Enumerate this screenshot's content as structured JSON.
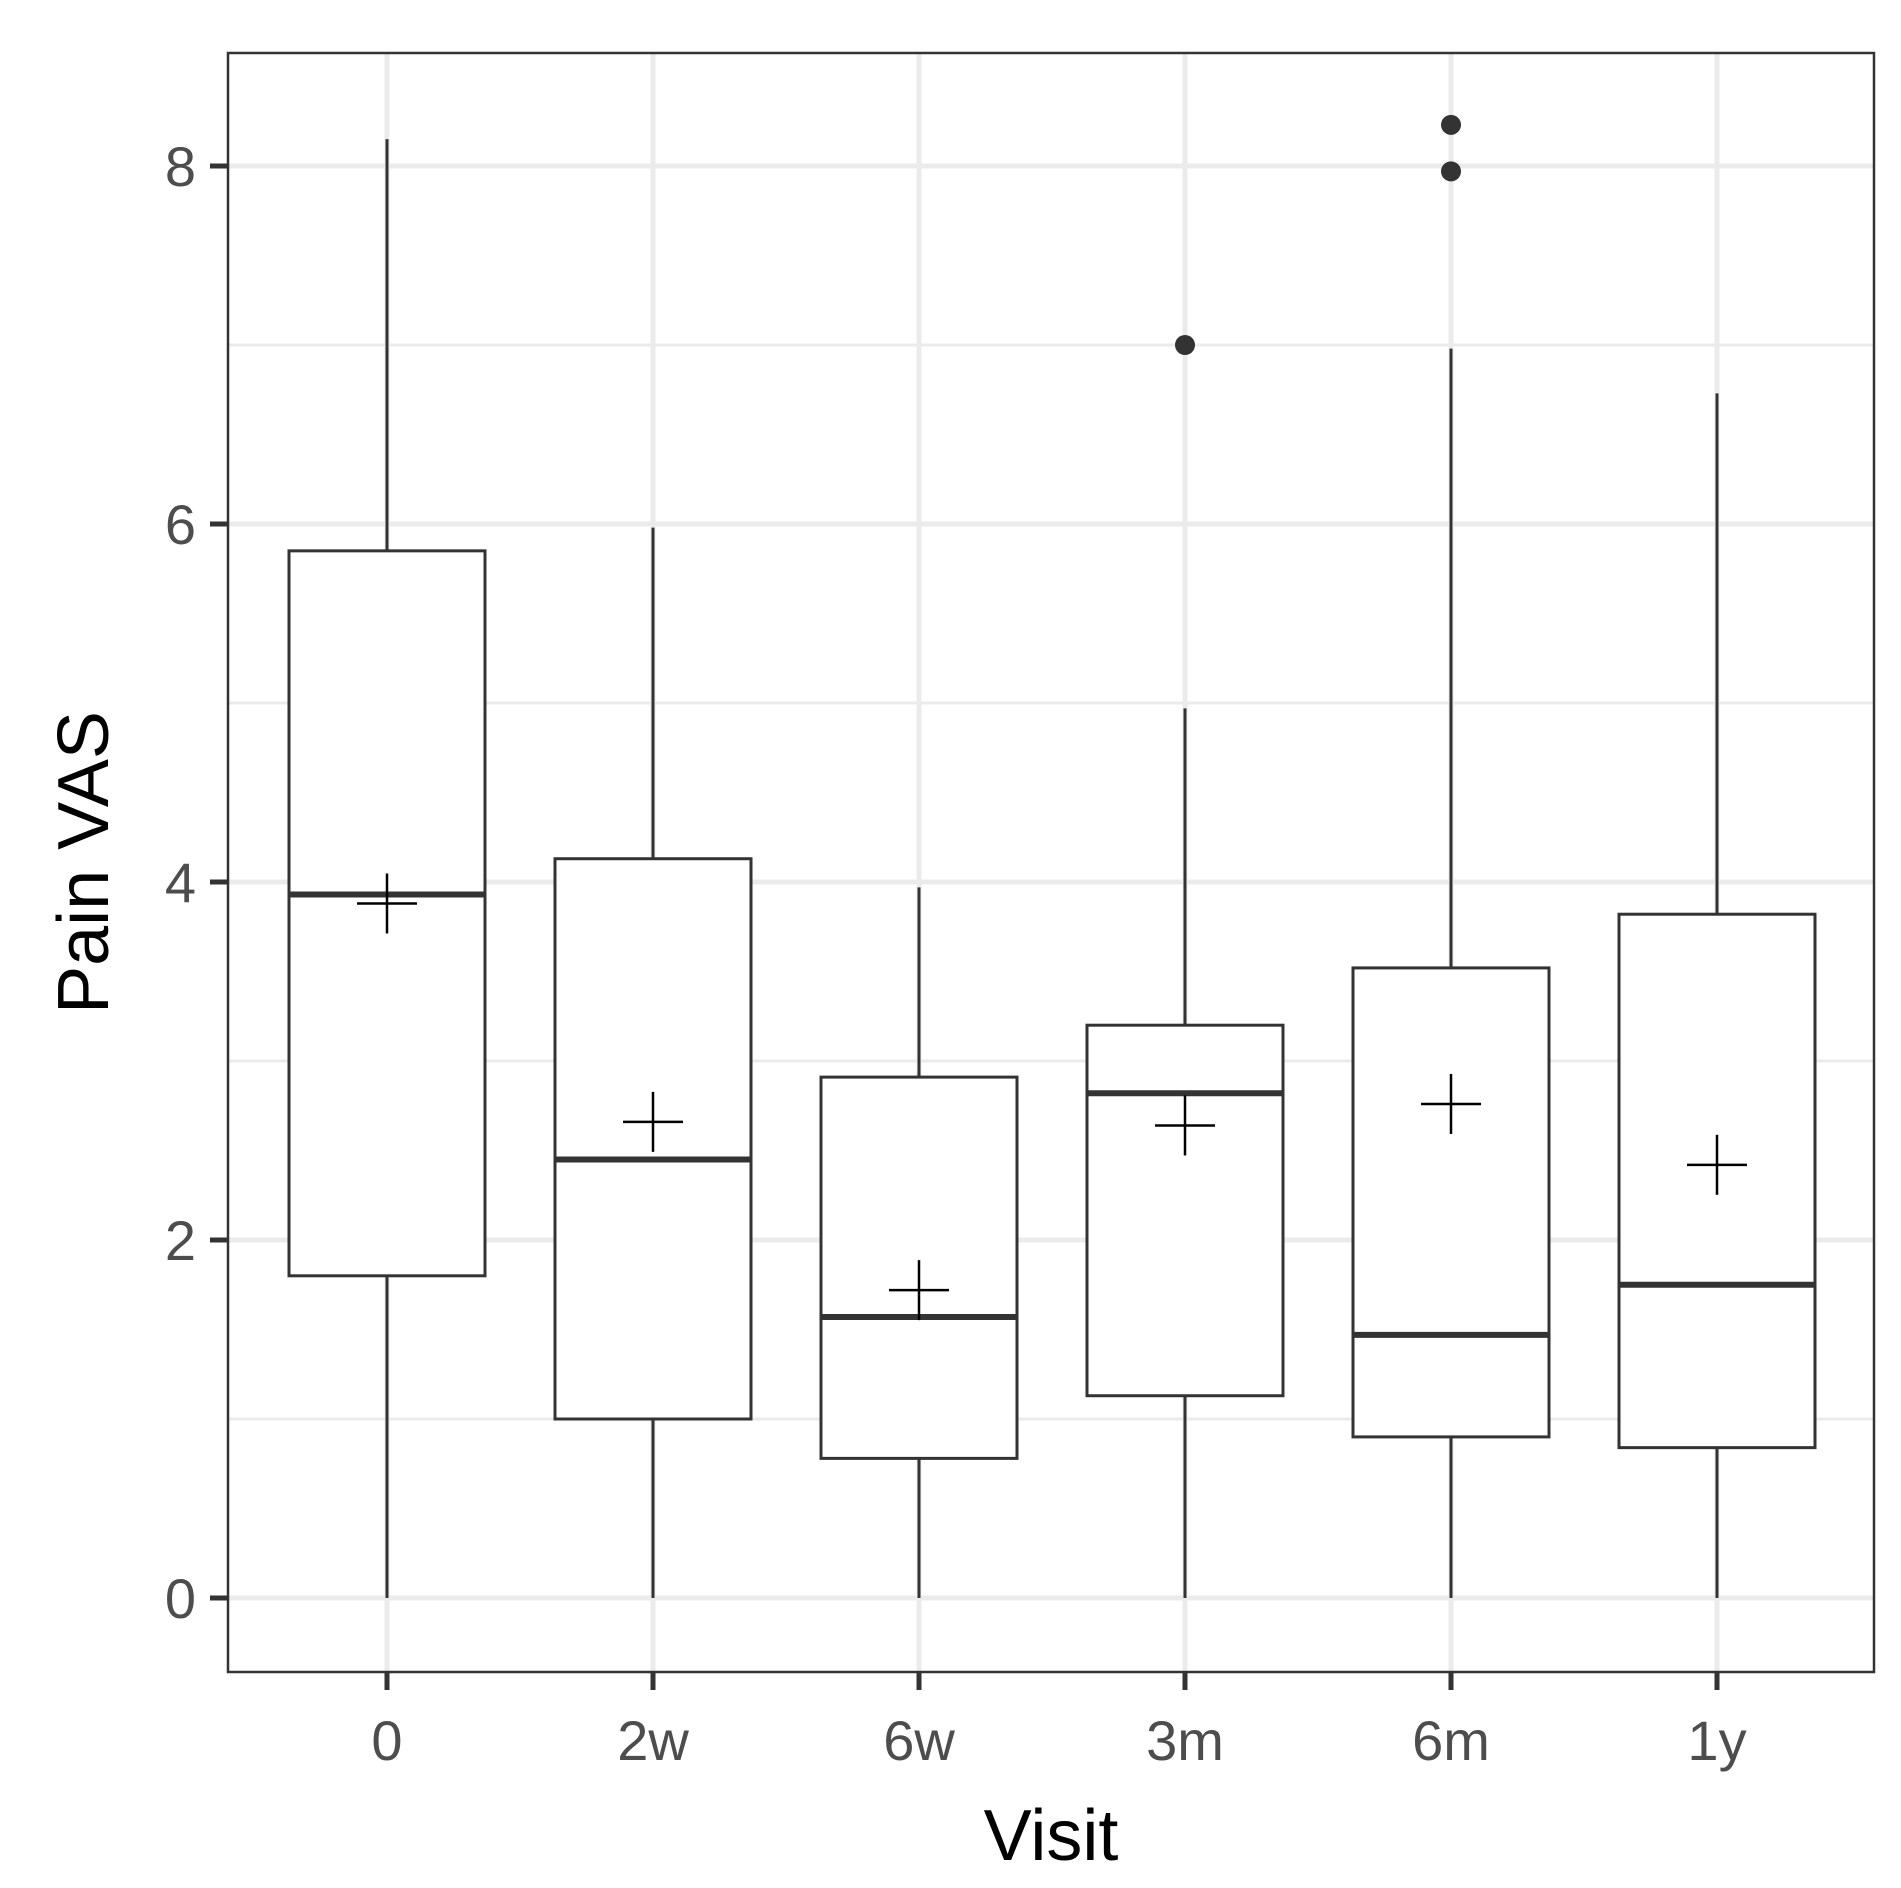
{
  "chart_data": {
    "type": "box",
    "xlabel": "Visit",
    "ylabel": "Pain VAS",
    "categories": [
      "0",
      "2w",
      "6w",
      "3m",
      "6m",
      "1y"
    ],
    "yticks": [
      0,
      2,
      4,
      6,
      8
    ],
    "ylim": [
      -0.4,
      8.6
    ],
    "grid": true,
    "boxes": [
      {
        "category": "0",
        "whisker_low": 0,
        "q1": 1.8,
        "median": 3.93,
        "q3": 5.85,
        "whisker_high": 8.15,
        "mean": 3.88,
        "outliers": []
      },
      {
        "category": "2w",
        "whisker_low": 0,
        "q1": 1.0,
        "median": 2.45,
        "q3": 4.13,
        "whisker_high": 5.98,
        "mean": 2.66,
        "outliers": []
      },
      {
        "category": "6w",
        "whisker_low": 0,
        "q1": 0.78,
        "median": 1.57,
        "q3": 2.91,
        "whisker_high": 3.97,
        "mean": 1.72,
        "outliers": []
      },
      {
        "category": "3m",
        "whisker_low": 0,
        "q1": 1.13,
        "median": 2.82,
        "q3": 3.2,
        "whisker_high": 4.97,
        "mean": 2.64,
        "outliers": [
          7.0
        ]
      },
      {
        "category": "6m",
        "whisker_low": 0,
        "q1": 0.9,
        "median": 1.47,
        "q3": 3.52,
        "whisker_high": 6.98,
        "mean": 2.76,
        "outliers": [
          8.23,
          7.97
        ]
      },
      {
        "category": "1y",
        "whisker_low": 0,
        "q1": 0.84,
        "median": 1.75,
        "q3": 3.82,
        "whisker_high": 6.73,
        "mean": 2.42,
        "outliers": []
      }
    ],
    "colors": {
      "box_line": "#333333",
      "grid": "#ebebeb",
      "panel_border": "#333333",
      "tick_text": "#4d4d4d"
    }
  }
}
